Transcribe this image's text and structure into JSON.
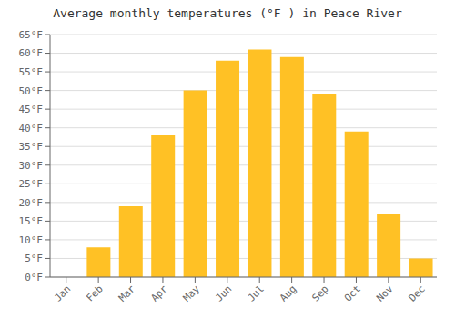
{
  "chart_data": {
    "type": "bar",
    "title": "Average monthly temperatures (°F ) in Peace River",
    "categories": [
      "Jan",
      "Feb",
      "Mar",
      "Apr",
      "May",
      "Jun",
      "Jul",
      "Aug",
      "Sep",
      "Oct",
      "Nov",
      "Dec"
    ],
    "values": [
      0,
      8,
      19,
      38,
      50,
      58,
      61,
      59,
      49,
      39,
      17,
      5
    ],
    "color": "#FFC125",
    "ylim": [
      0,
      65
    ],
    "yticks": [
      {
        "value": 0,
        "label": "0°F"
      },
      {
        "value": 5,
        "label": "5°F"
      },
      {
        "value": 10,
        "label": "10°F"
      },
      {
        "value": 15,
        "label": "15°F"
      },
      {
        "value": 20,
        "label": "20°F"
      },
      {
        "value": 25,
        "label": "25°F"
      },
      {
        "value": 30,
        "label": "30°F"
      },
      {
        "value": 35,
        "label": "35°F"
      },
      {
        "value": 40,
        "label": "40°F"
      },
      {
        "value": 45,
        "label": "45°F"
      },
      {
        "value": 50,
        "label": "50°F"
      },
      {
        "value": 55,
        "label": "55°F"
      },
      {
        "value": 60,
        "label": "60°F"
      },
      {
        "value": 65,
        "label": "65°F"
      }
    ],
    "grid": true
  }
}
